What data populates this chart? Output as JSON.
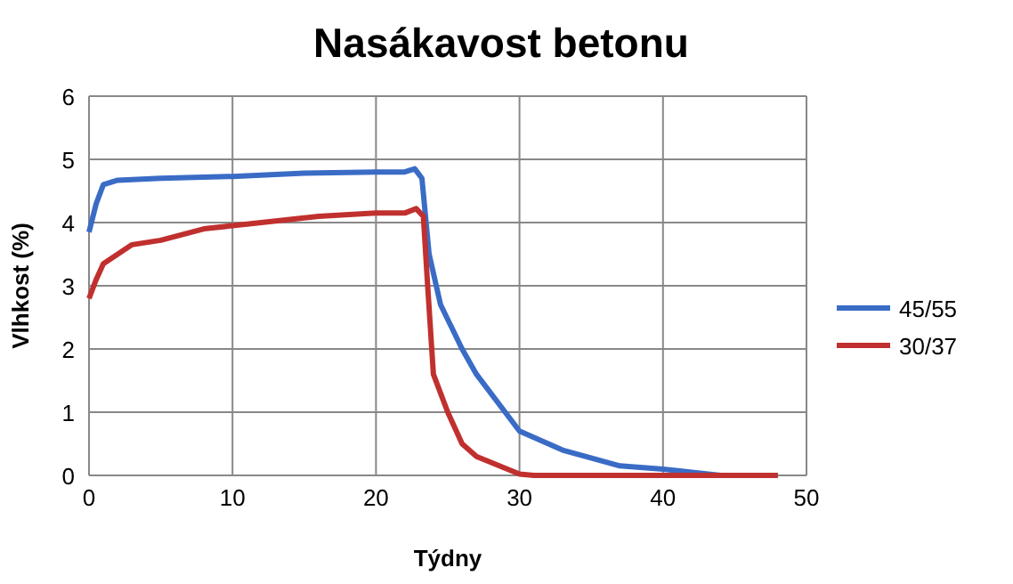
{
  "chart_data": {
    "type": "line",
    "title": "Nasákavost betonu",
    "xlabel": "Týdny",
    "ylabel": "Vlhkost (%)",
    "xlim": [
      0,
      50
    ],
    "xticks": [
      0,
      10,
      20,
      30,
      40,
      50
    ],
    "ylim": [
      0,
      6
    ],
    "yticks": [
      0,
      1,
      2,
      3,
      4,
      5,
      6
    ],
    "grid": true,
    "legend": "right",
    "line_style": "solid",
    "series": [
      {
        "name": "45/55",
        "color": "#3a6cc6",
        "x": [
          0,
          0.5,
          1,
          2,
          5,
          10,
          15,
          20,
          22,
          22.7,
          23.2,
          23.7,
          24.5,
          26,
          27,
          30,
          33,
          37,
          40,
          42,
          44,
          48
        ],
        "values": [
          3.85,
          4.3,
          4.6,
          4.67,
          4.7,
          4.73,
          4.78,
          4.8,
          4.8,
          4.85,
          4.7,
          3.5,
          2.7,
          2.0,
          1.6,
          0.7,
          0.4,
          0.15,
          0.1,
          0.05,
          0,
          0
        ]
      },
      {
        "name": "30/37",
        "color": "#c0302e",
        "x": [
          0,
          0.5,
          1,
          2,
          3,
          5,
          8,
          10,
          12,
          16,
          20,
          22,
          22.8,
          23.3,
          23.6,
          24,
          25,
          26,
          27,
          30,
          31,
          48
        ],
        "values": [
          2.8,
          3.1,
          3.35,
          3.5,
          3.65,
          3.72,
          3.9,
          3.95,
          4.0,
          4.1,
          4.15,
          4.15,
          4.22,
          4.1,
          3.0,
          1.6,
          1.0,
          0.5,
          0.3,
          0.02,
          0,
          0
        ]
      }
    ]
  }
}
